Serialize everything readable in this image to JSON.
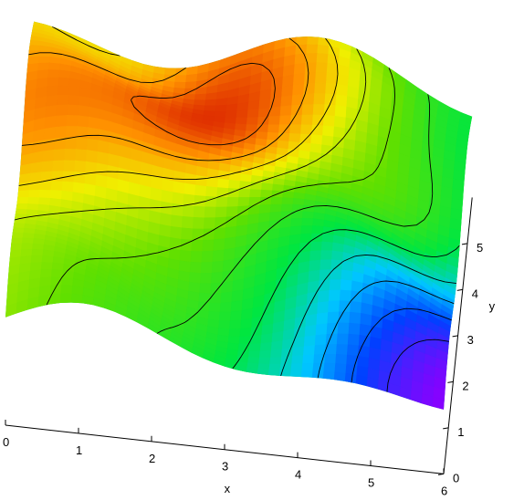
{
  "chart_data": {
    "type": "surface",
    "title": "",
    "xlabel": "x",
    "ylabel": "y",
    "xlim": [
      0,
      6
    ],
    "ylim": [
      0,
      6
    ],
    "x_ticks": [
      "0",
      "1",
      "2",
      "3",
      "4",
      "5",
      "6"
    ],
    "y_ticks": [
      "0",
      "1",
      "2",
      "3",
      "4",
      "5"
    ],
    "contour_lines": true,
    "colormap": [
      "#8a00ff",
      "#0040ff",
      "#00c8ff",
      "#00e640",
      "#60e000",
      "#f0f000",
      "#ff9000",
      "#e03000"
    ],
    "features": [
      {
        "kind": "peak",
        "x": 2.5,
        "y": 4.3
      },
      {
        "kind": "peak",
        "x": 0.4,
        "y": 4.0
      },
      {
        "kind": "peak",
        "x": 3.0,
        "y": 5.8
      },
      {
        "kind": "local-max",
        "x": 5.2,
        "y": 3.6
      },
      {
        "kind": "local-max",
        "x": 4.3,
        "y": 5.3
      },
      {
        "kind": "minimum",
        "x": 6.0,
        "y": 0.2
      }
    ]
  }
}
